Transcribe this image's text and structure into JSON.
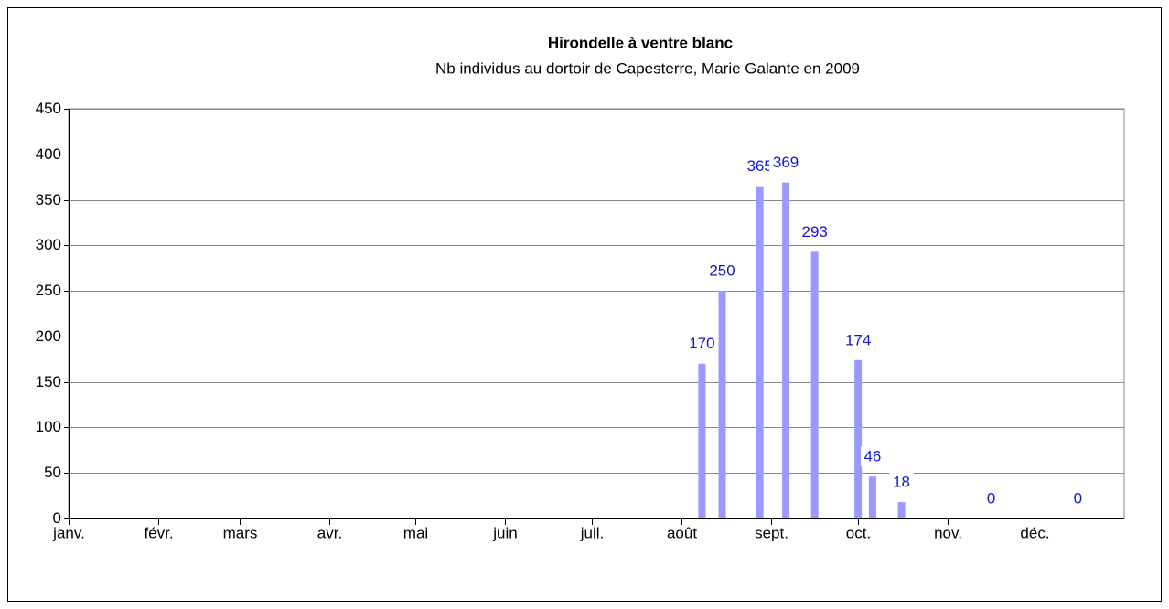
{
  "chart_data": {
    "type": "bar",
    "title": "Hirondelle à ventre blanc",
    "subtitle": "Nb individus au dortoir de Capesterre, Marie Galante en 2009",
    "x": [
      219,
      226,
      239,
      248,
      258,
      273,
      278,
      288,
      319,
      349
    ],
    "values": [
      170,
      250,
      365,
      369,
      293,
      174,
      46,
      18,
      0,
      0
    ],
    "color": "#9999ff",
    "label_color": "#1414d2",
    "xlim": [
      0,
      365
    ],
    "xticks": [
      {
        "value": 0,
        "label": "janv."
      },
      {
        "value": 31,
        "label": "févr."
      },
      {
        "value": 59,
        "label": "mars"
      },
      {
        "value": 90,
        "label": "avr."
      },
      {
        "value": 120,
        "label": "mai"
      },
      {
        "value": 151,
        "label": "juin"
      },
      {
        "value": 181,
        "label": "juil."
      },
      {
        "value": 212,
        "label": "août"
      },
      {
        "value": 243,
        "label": "sept."
      },
      {
        "value": 273,
        "label": "oct."
      },
      {
        "value": 304,
        "label": "nov."
      },
      {
        "value": 334,
        "label": "déc."
      }
    ],
    "ylim": [
      0,
      450
    ],
    "yticks": [
      0,
      50,
      100,
      150,
      200,
      250,
      300,
      350,
      400,
      450
    ],
    "grid": true
  }
}
